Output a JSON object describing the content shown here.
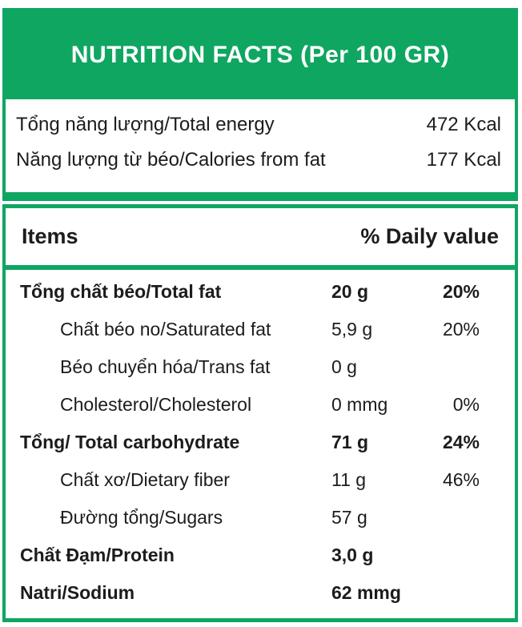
{
  "colors": {
    "green": "#0fa662",
    "title_text": "#ffffff"
  },
  "header": {
    "title": "NUTRITION FACTS (Per 100 GR)"
  },
  "energy": {
    "rows": [
      {
        "label": "Tổng năng lượng/Total energy",
        "value": "472 Kcal"
      },
      {
        "label": "Năng lượng từ béo/Calories from fat",
        "value": "177 Kcal"
      }
    ]
  },
  "table": {
    "columns": {
      "items": "Items",
      "daily_value": "% Daily value"
    },
    "rows": [
      {
        "label": "Tổng chất béo/Total fat",
        "amount": "20 g",
        "percent": "20%"
      },
      {
        "label": "Chất béo no/Saturated fat",
        "amount": "5,9 g",
        "percent": "20%"
      },
      {
        "label": "Béo chuyển hóa/Trans fat",
        "amount": "0 g",
        "percent": ""
      },
      {
        "label": "Cholesterol/Cholesterol",
        "amount": "0 mmg",
        "percent": "0%"
      },
      {
        "label": "Tổng/ Total carbohydrate",
        "amount": "71 g",
        "percent": "24%"
      },
      {
        "label": "Chất xơ/Dietary fiber",
        "amount": "11 g",
        "percent": "46%"
      },
      {
        "label": "Đường tổng/Sugars",
        "amount": "57 g",
        "percent": ""
      },
      {
        "label": "Chất Đạm/Protein",
        "amount": "3,0 g",
        "percent": ""
      },
      {
        "label": "Natri/Sodium",
        "amount": "62 mmg",
        "percent": ""
      }
    ]
  }
}
